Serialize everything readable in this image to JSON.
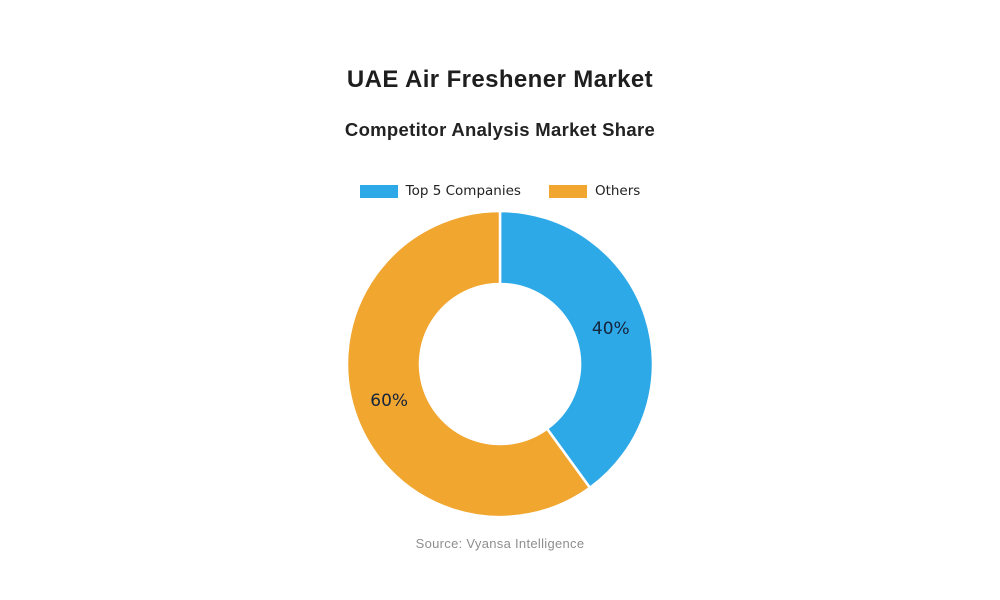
{
  "header": {
    "title": "UAE Air Freshener Market",
    "subtitle": "Competitor Analysis Market Share"
  },
  "legend": {
    "items": [
      {
        "label": "Top 5 Companies",
        "color": "#2EA9E8"
      },
      {
        "label": "Others",
        "color": "#F0A62F"
      }
    ]
  },
  "chart_data": {
    "type": "pie",
    "donut": true,
    "title": "UAE Air Freshener Market",
    "subtitle": "Competitor Analysis Market Share",
    "categories": [
      "Top 5 Companies",
      "Others"
    ],
    "values": [
      40,
      60
    ],
    "labels": [
      "40%",
      "60%"
    ],
    "colors": [
      "#2EA9E8",
      "#F0A62F"
    ],
    "label_color": "#16243C",
    "start_angle_deg": 0,
    "direction": "clockwise",
    "legend_position": "top",
    "inner_radius_ratio": 0.52
  },
  "footer": {
    "source": "Source: Vyansa Intelligence"
  }
}
